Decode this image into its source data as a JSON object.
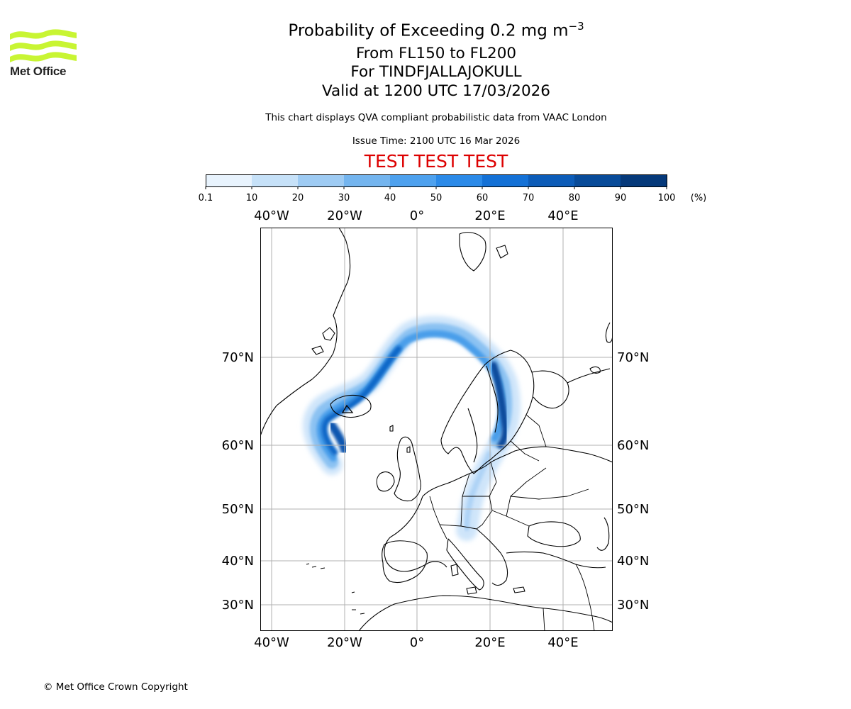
{
  "header": {
    "logo_text": "Met Office",
    "title_main": "Probability of Exceeding 0.2 mg m",
    "title_sup": "−3",
    "level_line": "From FL150 to FL200",
    "volcano_line": "For TINDFJALLAJOKULL",
    "valid_line": "Valid at 1200 UTC 17/03/2026",
    "note_line": "This chart displays QVA compliant probabilistic data from VAAC London",
    "issue_line": "Issue Time: 2100 UTC 16 Mar 2026",
    "test_line": "TEST TEST TEST",
    "test_color": "#dd0000"
  },
  "colorbar": {
    "ticks": [
      "0.1",
      "10",
      "20",
      "30",
      "40",
      "50",
      "60",
      "70",
      "80",
      "90",
      "100"
    ],
    "unit": "(%)",
    "colors": [
      "#e8f3fd",
      "#c6e1f8",
      "#9ecbf3",
      "#74b5ef",
      "#4ea1ee",
      "#2b8ae8",
      "#1471d6",
      "#0c5cb8",
      "#084b99",
      "#05397a",
      "#02285a"
    ]
  },
  "map": {
    "lon_labels": [
      "40°W",
      "20°W",
      "0°",
      "20°E",
      "40°E"
    ],
    "lat_labels": [
      "70°N",
      "60°N",
      "50°N",
      "40°N",
      "30°N"
    ],
    "lon_values": [
      -40,
      -20,
      0,
      20,
      40
    ],
    "lat_values": [
      70,
      60,
      50,
      40,
      30
    ],
    "extent": {
      "lon": [
        -43,
        53
      ],
      "lat": [
        26,
        84
      ]
    },
    "projection": "stereographic",
    "grid": true,
    "features": [
      "coastlines",
      "country borders",
      "ash probability plume"
    ],
    "ash_source": "TINDFJALLAJOKULL"
  },
  "footer": {
    "copyright": "© Met Office Crown Copyright"
  }
}
